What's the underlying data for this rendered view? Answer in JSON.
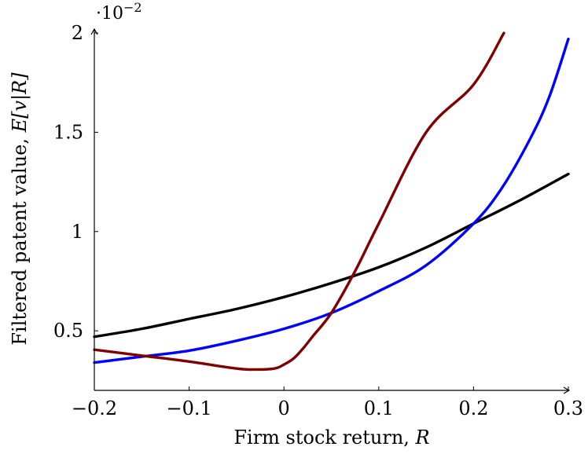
{
  "chart_data": {
    "type": "line",
    "title": "",
    "xlabel": {
      "text": "Firm stock return, ",
      "var": "R"
    },
    "ylabel": {
      "text": "Filtered patent value, ",
      "expr": "E[v|R]"
    },
    "y_multiplier": "·10",
    "y_multiplier_exp": "−2",
    "xlim": [
      -0.2,
      0.3
    ],
    "ylim": [
      0.2,
      2.0
    ],
    "xticks": [
      -0.2,
      -0.1,
      0,
      0.1,
      0.2,
      0.3
    ],
    "xtick_labels": [
      "−0.2",
      "−0.1",
      "0",
      "0.1",
      "0.2",
      "0.3"
    ],
    "yticks": [
      0.5,
      1.0,
      1.5,
      2.0
    ],
    "ytick_labels": [
      "0.5",
      "1",
      "1.5",
      "2"
    ],
    "grid": false,
    "series": [
      {
        "color": "#000000",
        "x": [
          -0.2,
          -0.15,
          -0.1,
          -0.05,
          0.0,
          0.05,
          0.1,
          0.15,
          0.2,
          0.25,
          0.3
        ],
        "y": [
          0.47,
          0.51,
          0.56,
          0.61,
          0.67,
          0.74,
          0.82,
          0.92,
          1.04,
          1.16,
          1.29
        ]
      },
      {
        "color": "#0000ff",
        "x": [
          -0.2,
          -0.15,
          -0.1,
          -0.05,
          0.0,
          0.05,
          0.1,
          0.15,
          0.2,
          0.23,
          0.26,
          0.28,
          0.3
        ],
        "y": [
          0.34,
          0.37,
          0.4,
          0.45,
          0.51,
          0.59,
          0.7,
          0.83,
          1.04,
          1.22,
          1.47,
          1.68,
          1.97
        ]
      },
      {
        "color": "#7f0000",
        "x": [
          -0.2,
          -0.15,
          -0.1,
          -0.05,
          -0.03,
          -0.01,
          0.0,
          0.01,
          0.02,
          0.03,
          0.05,
          0.075,
          0.1,
          0.15,
          0.2,
          0.232
        ],
        "y": [
          0.405,
          0.375,
          0.345,
          0.31,
          0.305,
          0.31,
          0.33,
          0.36,
          0.41,
          0.47,
          0.59,
          0.8,
          1.04,
          1.5,
          1.74,
          2.0
        ]
      }
    ]
  }
}
